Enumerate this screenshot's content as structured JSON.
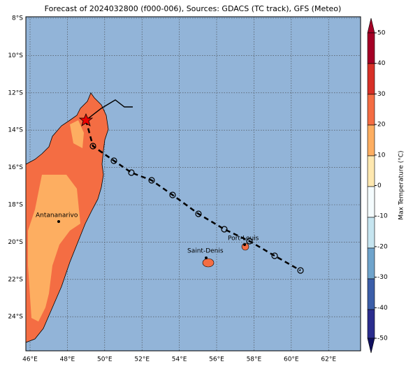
{
  "title": "Forecast of 2024032800 (f000-006), Sources: GDACS (TC track), GFS (Meteo)",
  "x_ticks": [
    "46°E",
    "48°E",
    "50°E",
    "52°E",
    "54°E",
    "56°E",
    "58°E",
    "60°E",
    "62°E"
  ],
  "y_ticks": [
    "8°S",
    "10°S",
    "12°S",
    "14°S",
    "16°S",
    "18°S",
    "20°S",
    "22°S",
    "24°S"
  ],
  "cities": [
    "Antananarivo",
    "Saint-Denis",
    "Port-Louis"
  ],
  "colorbar": {
    "label": "Max Temperature (°C)",
    "ticks": [
      50,
      40,
      30,
      20,
      10,
      0,
      -10,
      -20,
      -30,
      -40,
      -50
    ]
  }
}
